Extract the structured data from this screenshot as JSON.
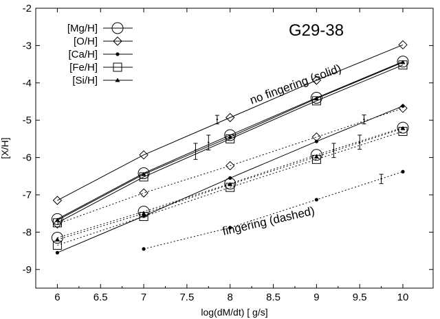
{
  "chart_data": {
    "type": "line",
    "title": "G29-38",
    "xlabel": "log(dM/dt) [ g/s]",
    "ylabel": "[X/H]",
    "xlim": [
      5.75,
      10.35
    ],
    "ylim": [
      -9.5,
      -2
    ],
    "xticks": [
      "6",
      "6.5",
      "7",
      "7.5",
      "8",
      "8.5",
      "9",
      "9.5",
      "10"
    ],
    "yticks": [
      "-2",
      "-3",
      "-4",
      "-5",
      "-6",
      "-7",
      "-8",
      "-9"
    ],
    "grid": false,
    "legend_position": "top-left",
    "legend": [
      "[Mg/H]",
      "[O/H]",
      "[Ca/H]",
      "[Fe/H]",
      "[Si/H]"
    ],
    "annotations": [
      "no fingering (solid)",
      "fingering (dashed)"
    ],
    "series": [
      {
        "name": "[Mg/H]",
        "marker": "circle",
        "style": "solid",
        "x": [
          6,
          7,
          8,
          9,
          10
        ],
        "y": [
          -7.65,
          -6.42,
          -5.4,
          -4.4,
          -3.43
        ]
      },
      {
        "name": "[O/H]",
        "marker": "diamond",
        "style": "solid",
        "x": [
          6,
          7,
          8,
          9,
          10
        ],
        "y": [
          -7.15,
          -5.93,
          -4.93,
          -3.93,
          -2.98
        ]
      },
      {
        "name": "[Ca/H]",
        "marker": "dot",
        "style": "solid",
        "x": [
          6,
          7,
          8,
          9,
          10
        ],
        "y": [
          -8.55,
          -7.57,
          -6.55,
          -5.57,
          -4.62
        ]
      },
      {
        "name": "[Fe/H]",
        "marker": "square",
        "style": "solid",
        "x": [
          6,
          7,
          8,
          9,
          10
        ],
        "y": [
          -7.75,
          -6.52,
          -5.5,
          -4.48,
          -3.52
        ]
      },
      {
        "name": "[Si/H]",
        "marker": "triangle",
        "style": "solid",
        "x": [
          6,
          7,
          8,
          9,
          10
        ],
        "y": [
          -7.68,
          -6.45,
          -5.45,
          -4.42,
          -3.45
        ]
      },
      {
        "name": "[Mg/H]",
        "marker": "circle",
        "style": "dashed",
        "x": [
          6,
          7,
          8,
          9,
          10
        ],
        "y": [
          -8.15,
          -7.45,
          -6.7,
          -5.93,
          -5.2
        ]
      },
      {
        "name": "[O/H]",
        "marker": "diamond",
        "style": "dashed",
        "x": [
          6,
          7,
          8,
          9,
          10
        ],
        "y": [
          -7.78,
          -6.95,
          -6.22,
          -5.45,
          -4.68
        ]
      },
      {
        "name": "[Ca/H]",
        "marker": "dot",
        "style": "dashed",
        "x": [
          7,
          8,
          9,
          10
        ],
        "y": [
          -8.45,
          -7.88,
          -7.13,
          -6.38
        ]
      },
      {
        "name": "[Fe/H]",
        "marker": "square",
        "style": "dashed",
        "x": [
          6,
          7,
          8,
          9,
          10
        ],
        "y": [
          -8.35,
          -7.58,
          -6.8,
          -6.05,
          -5.3
        ]
      },
      {
        "name": "[Si/H]",
        "marker": "triangle",
        "style": "dashed",
        "x": [
          6,
          7,
          8,
          9,
          10
        ],
        "y": [
          -8.2,
          -7.5,
          -6.72,
          -5.98,
          -5.22
        ]
      }
    ],
    "error_bars": [
      {
        "x": 7.6,
        "y": -5.8,
        "low": -6.05,
        "high": -5.62
      },
      {
        "x": 7.75,
        "y": -5.6,
        "low": -5.8,
        "high": -5.4
      },
      {
        "x": 7.85,
        "y": -4.98,
        "low": -5.1,
        "high": -4.87
      },
      {
        "x": 9.2,
        "y": -5.8,
        "low": -6.0,
        "high": -5.62
      },
      {
        "x": 9.5,
        "y": -5.6,
        "low": -5.78,
        "high": -5.4
      },
      {
        "x": 9.55,
        "y": -4.98,
        "low": -5.1,
        "high": -4.86
      },
      {
        "x": 9.75,
        "y": -6.57,
        "low": -6.7,
        "high": -6.45
      }
    ]
  }
}
